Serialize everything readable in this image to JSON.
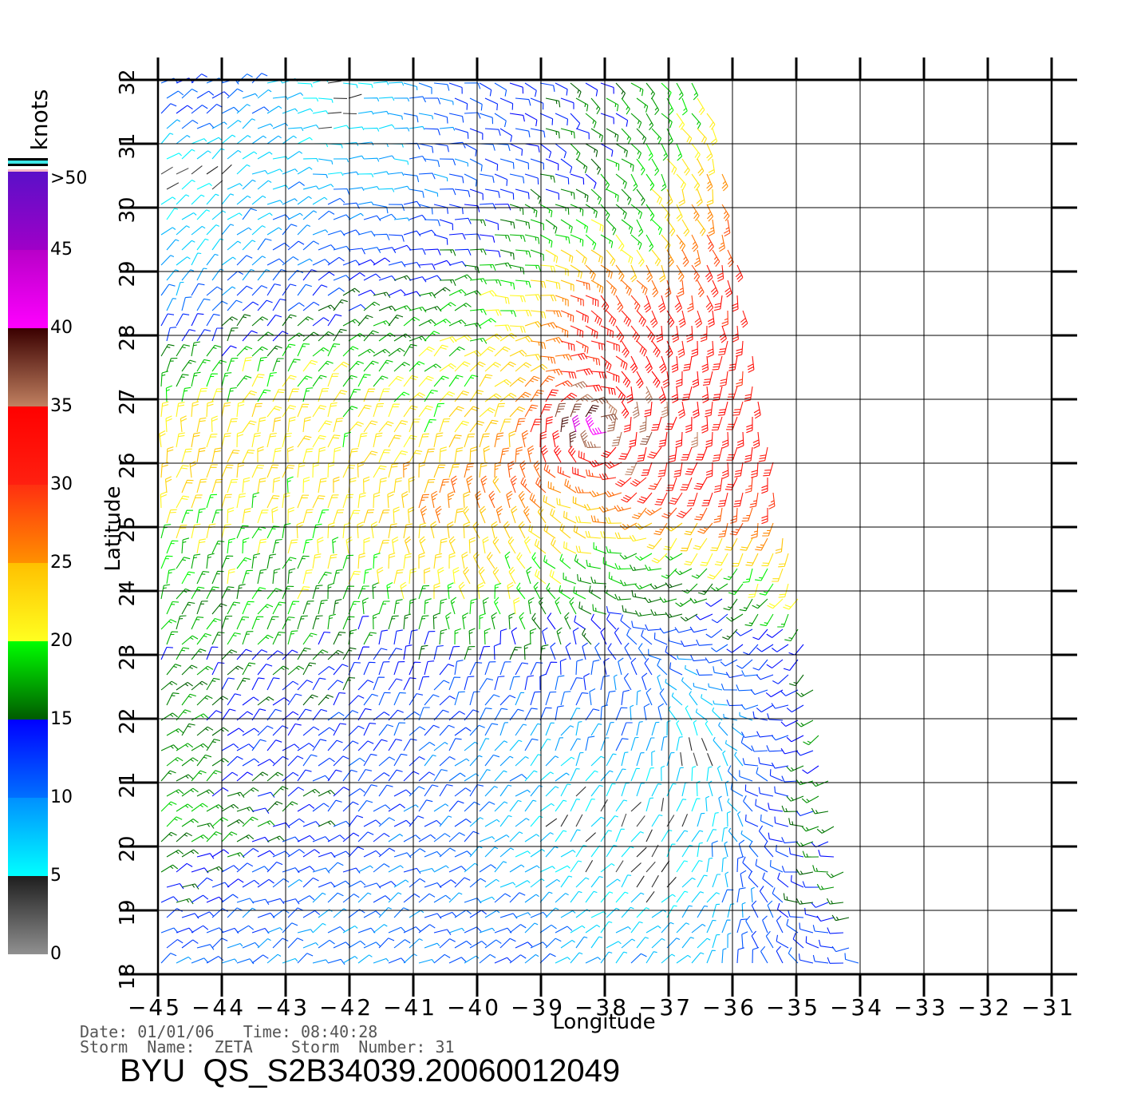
{
  "colorbar": {
    "unit": "knots",
    "labels": [
      ">50",
      "45",
      "40",
      "35",
      "30",
      "25",
      "20",
      "15",
      "10",
      "5",
      "0"
    ],
    "top_stripes": [
      "#000000",
      "#3ce6e6",
      "#000000",
      "#ffffff",
      "#f4b8c8"
    ],
    "bands": [
      {
        "from": 0,
        "to": 5,
        "low": "#909090",
        "high": "#1e1e1e"
      },
      {
        "from": 5,
        "to": 10,
        "low": "#00ffff",
        "high": "#0090ff"
      },
      {
        "from": 10,
        "to": 15,
        "low": "#0070ff",
        "high": "#0000ff"
      },
      {
        "from": 15,
        "to": 20,
        "low": "#005a00",
        "high": "#00ff00"
      },
      {
        "from": 20,
        "to": 25,
        "low": "#ffff20",
        "high": "#ffc000"
      },
      {
        "from": 25,
        "to": 30,
        "low": "#ff9000",
        "high": "#ff3010"
      },
      {
        "from": 30,
        "to": 35,
        "low": "#ff2010",
        "high": "#ff0000"
      },
      {
        "from": 35,
        "to": 40,
        "low": "#c08060",
        "high": "#3a0000"
      },
      {
        "from": 40,
        "to": 45,
        "low": "#ff00ff",
        "high": "#b800c8"
      },
      {
        "from": 45,
        "to": 50,
        "low": "#a000c8",
        "high": "#5a10c8"
      }
    ]
  },
  "axes": {
    "xlabel": "Longitude",
    "ylabel": "Latitude",
    "x_ticks": [
      "−45",
      "−44",
      "−43",
      "−42",
      "−41",
      "−40",
      "−39",
      "−38",
      "−37",
      "−36",
      "−35",
      "−34",
      "−33",
      "−32",
      "−31"
    ],
    "y_ticks": [
      "32",
      "31",
      "30",
      "29",
      "28",
      "27",
      "26",
      "25",
      "24",
      "23",
      "22",
      "21",
      "20",
      "19",
      "18"
    ]
  },
  "footer": {
    "date_time_line": "Date: 01/01/06   Time: 08:40:28",
    "storm_line": "Storm  Name:  ZETA    Storm  Number: 31",
    "title": "BYU  QS_S2B34039.20060012049"
  },
  "wind_field": {
    "type": "wind_barbs",
    "units": "knots",
    "lon_range": [
      -45,
      -31
    ],
    "lat_range": [
      18,
      32
    ],
    "cell_center_lons": [
      -44.5,
      -43.5,
      -42.5,
      -41.5,
      -40.5,
      -39.5,
      -38.5,
      -37.5,
      -36.5,
      -35.5,
      -34.5
    ],
    "cell_center_lats": [
      31.5,
      30.5,
      29.5,
      28.5,
      27.5,
      26.5,
      25.5,
      24.5,
      23.5,
      22.5,
      21.5,
      20.5,
      19.5,
      18.5
    ],
    "speed": [
      [
        12,
        10,
        4,
        8,
        12,
        13,
        15,
        17,
        20,
        null,
        null
      ],
      [
        3,
        8,
        8,
        8,
        11,
        13,
        16,
        18,
        24,
        null,
        null
      ],
      [
        7,
        9,
        11,
        12,
        14,
        17,
        21,
        20,
        28,
        30,
        null
      ],
      [
        10,
        12,
        13,
        15,
        17,
        21,
        30,
        31,
        32,
        31,
        null
      ],
      [
        17,
        18,
        20,
        19,
        20,
        22,
        31,
        33,
        33,
        31,
        null
      ],
      [
        22,
        23,
        20,
        21,
        22,
        25,
        42,
        36,
        33,
        32,
        null
      ],
      [
        23,
        21,
        22,
        23,
        26,
        27,
        25,
        30,
        31,
        31,
        null
      ],
      [
        19,
        18,
        20,
        22,
        24,
        22,
        21,
        18,
        19,
        22,
        null
      ],
      [
        17,
        18,
        17,
        16,
        19,
        18,
        16,
        14,
        13,
        16,
        18
      ],
      [
        16,
        15,
        14,
        13,
        12,
        12,
        12,
        11,
        9,
        12,
        17
      ],
      [
        16,
        13,
        12,
        12,
        11,
        9,
        8,
        10,
        4,
        12,
        16
      ],
      [
        18,
        16,
        14,
        12,
        11,
        8,
        5,
        4,
        6,
        12,
        16
      ],
      [
        16,
        12,
        11,
        11,
        11,
        8,
        7,
        4,
        8,
        12,
        15
      ],
      [
        11,
        11,
        9,
        10,
        11,
        12,
        8,
        9,
        8,
        12,
        13
      ]
    ],
    "direction_from_deg": [
      [
        60,
        60,
        90,
        90,
        100,
        110,
        120,
        130,
        150,
        null,
        null
      ],
      [
        50,
        60,
        80,
        90,
        100,
        110,
        120,
        140,
        160,
        null,
        null
      ],
      [
        40,
        50,
        60,
        80,
        90,
        100,
        120,
        140,
        160,
        170,
        null
      ],
      [
        30,
        40,
        50,
        60,
        70,
        90,
        110,
        150,
        170,
        175,
        null
      ],
      [
        20,
        30,
        40,
        40,
        50,
        60,
        90,
        150,
        180,
        180,
        null
      ],
      [
        10,
        20,
        20,
        30,
        30,
        20,
        0,
        200,
        190,
        185,
        null
      ],
      [
        10,
        10,
        10,
        10,
        0,
        340,
        290,
        230,
        200,
        190,
        null
      ],
      [
        20,
        20,
        10,
        0,
        350,
        330,
        300,
        260,
        220,
        200,
        null
      ],
      [
        30,
        30,
        20,
        10,
        0,
        350,
        320,
        290,
        250,
        220,
        210
      ],
      [
        40,
        40,
        40,
        30,
        30,
        20,
        10,
        340,
        300,
        250,
        230
      ],
      [
        50,
        50,
        50,
        40,
        40,
        40,
        30,
        20,
        350,
        280,
        240
      ],
      [
        60,
        60,
        50,
        50,
        50,
        50,
        40,
        30,
        10,
        300,
        250
      ],
      [
        60,
        60,
        60,
        60,
        60,
        50,
        50,
        40,
        30,
        320,
        260
      ],
      [
        60,
        60,
        60,
        60,
        60,
        60,
        50,
        50,
        40,
        340,
        270
      ]
    ]
  }
}
